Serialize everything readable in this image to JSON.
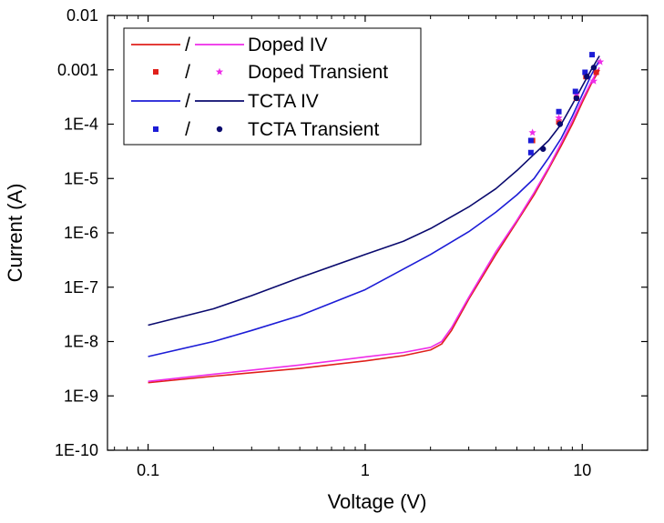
{
  "chart_data": {
    "type": "line",
    "xlabel": "Voltage (V)",
    "ylabel": "Current (A)",
    "xscale": "log",
    "yscale": "log",
    "xlim": [
      0.065,
      20
    ],
    "ylim": [
      1e-10,
      0.01
    ],
    "grid": false,
    "legend_position": "top-left",
    "x_ticks": [
      {
        "value": 0.1,
        "label": "0.1"
      },
      {
        "value": 1,
        "label": "1"
      },
      {
        "value": 10,
        "label": "10"
      }
    ],
    "y_ticks": [
      {
        "value": 1e-10,
        "label": "1E-10"
      },
      {
        "value": 1e-09,
        "label": "1E-9"
      },
      {
        "value": 1e-08,
        "label": "1E-8"
      },
      {
        "value": 1e-07,
        "label": "1E-7"
      },
      {
        "value": 1e-06,
        "label": "1E-6"
      },
      {
        "value": 1e-05,
        "label": "1E-5"
      },
      {
        "value": 0.0001,
        "label": "1E-4"
      },
      {
        "value": 0.001,
        "label": "0.001"
      },
      {
        "value": 0.01,
        "label": "0.01"
      }
    ],
    "legend": [
      {
        "label": "Doped IV",
        "separator": "/",
        "kind": "line",
        "colors": [
          "#e0201b",
          "#ee2ce8"
        ]
      },
      {
        "label": "Doped Transient",
        "separator": "/",
        "kind": "marker",
        "markers": [
          "square",
          "star"
        ],
        "colors": [
          "#e0201b",
          "#ee2ce8"
        ]
      },
      {
        "label": "TCTA IV",
        "separator": "/",
        "kind": "line",
        "colors": [
          "#1c1cd6",
          "#0a0a6e"
        ]
      },
      {
        "label": "TCTA Transient",
        "separator": "/",
        "kind": "marker",
        "markers": [
          "square",
          "circle"
        ],
        "colors": [
          "#1c1cd6",
          "#0a0a6e"
        ]
      }
    ],
    "series": [
      {
        "kind": "line",
        "color": "#e0201b",
        "points": [
          [
            0.1,
            1.75e-09
          ],
          [
            0.2,
            2.3e-09
          ],
          [
            0.5,
            3.2e-09
          ],
          [
            1.0,
            4.4e-09
          ],
          [
            1.5,
            5.5e-09
          ],
          [
            2.0,
            7e-09
          ],
          [
            2.25,
            9e-09
          ],
          [
            2.5,
            1.6e-08
          ],
          [
            3.0,
            6e-08
          ],
          [
            4.0,
            4e-07
          ],
          [
            5.0,
            1.6e-06
          ],
          [
            6.0,
            5e-06
          ],
          [
            7.0,
            1.5e-05
          ],
          [
            8.0,
            4e-05
          ],
          [
            9.0,
            0.0001
          ],
          [
            10.0,
            0.00025
          ],
          [
            11.0,
            0.00055
          ],
          [
            12.0,
            0.001
          ]
        ]
      },
      {
        "kind": "line",
        "color": "#ee2ce8",
        "points": [
          [
            0.1,
            1.85e-09
          ],
          [
            0.2,
            2.5e-09
          ],
          [
            0.5,
            3.7e-09
          ],
          [
            1.0,
            5.2e-09
          ],
          [
            1.5,
            6.3e-09
          ],
          [
            2.0,
            7.8e-09
          ],
          [
            2.25,
            1e-08
          ],
          [
            2.5,
            1.8e-08
          ],
          [
            3.0,
            6.5e-08
          ],
          [
            4.0,
            4.5e-07
          ],
          [
            5.0,
            1.7e-06
          ],
          [
            6.0,
            5.5e-06
          ],
          [
            7.0,
            1.6e-05
          ],
          [
            8.0,
            4.5e-05
          ],
          [
            9.0,
            0.000115
          ],
          [
            10.0,
            0.00028
          ],
          [
            11.0,
            0.0006
          ],
          [
            12.0,
            0.0011
          ]
        ]
      },
      {
        "kind": "line",
        "color": "#1c1cd6",
        "points": [
          [
            0.1,
            5.3e-09
          ],
          [
            0.2,
            1e-08
          ],
          [
            0.3,
            1.6e-08
          ],
          [
            0.5,
            3e-08
          ],
          [
            1.0,
            9e-08
          ],
          [
            2.0,
            4e-07
          ],
          [
            3.0,
            1.05e-06
          ],
          [
            4.0,
            2.4e-06
          ],
          [
            5.0,
            5e-06
          ],
          [
            6.0,
            1e-05
          ],
          [
            7.0,
            2.4e-05
          ],
          [
            8.0,
            5.5e-05
          ],
          [
            9.0,
            0.00014
          ],
          [
            10.0,
            0.00035
          ],
          [
            11.0,
            0.0008
          ],
          [
            12.0,
            0.0015
          ]
        ]
      },
      {
        "kind": "line",
        "color": "#0a0a6e",
        "points": [
          [
            0.1,
            2e-08
          ],
          [
            0.2,
            4e-08
          ],
          [
            0.3,
            7e-08
          ],
          [
            0.5,
            1.5e-07
          ],
          [
            1.0,
            4e-07
          ],
          [
            1.5,
            7e-07
          ],
          [
            2.0,
            1.2e-06
          ],
          [
            3.0,
            3e-06
          ],
          [
            4.0,
            6.5e-06
          ],
          [
            5.0,
            1.4e-05
          ],
          [
            6.0,
            2.8e-05
          ],
          [
            7.0,
            5e-05
          ],
          [
            8.0,
            0.0001
          ],
          [
            9.0,
            0.00023
          ],
          [
            10.0,
            0.0005
          ],
          [
            11.0,
            0.001
          ],
          [
            12.0,
            0.0018
          ]
        ]
      },
      {
        "kind": "marker",
        "marker": "square",
        "color": "#e0201b",
        "points": [
          [
            5.9,
            5e-05
          ],
          [
            7.8,
            0.00011
          ],
          [
            9.4,
            0.0003
          ],
          [
            10.4,
            0.00075
          ],
          [
            11.6,
            0.0009
          ]
        ]
      },
      {
        "kind": "marker",
        "marker": "star",
        "color": "#ee2ce8",
        "points": [
          [
            5.9,
            7e-05
          ],
          [
            7.8,
            0.00013
          ],
          [
            9.4,
            0.00035
          ],
          [
            11.3,
            0.00062
          ],
          [
            12.1,
            0.0014
          ]
        ]
      },
      {
        "kind": "marker",
        "marker": "square",
        "color": "#1c1cd6",
        "points": [
          [
            5.8,
            3e-05
          ],
          [
            5.8,
            5e-05
          ],
          [
            7.8,
            0.00017
          ],
          [
            9.3,
            0.0004
          ],
          [
            10.3,
            0.0009
          ],
          [
            11.1,
            0.0019
          ]
        ]
      },
      {
        "kind": "marker",
        "marker": "circle",
        "color": "#0a0a6e",
        "points": [
          [
            6.6,
            3.5e-05
          ],
          [
            7.9,
            0.0001
          ],
          [
            9.4,
            0.0003
          ],
          [
            10.5,
            0.00075
          ],
          [
            11.3,
            0.0011
          ]
        ]
      }
    ]
  }
}
